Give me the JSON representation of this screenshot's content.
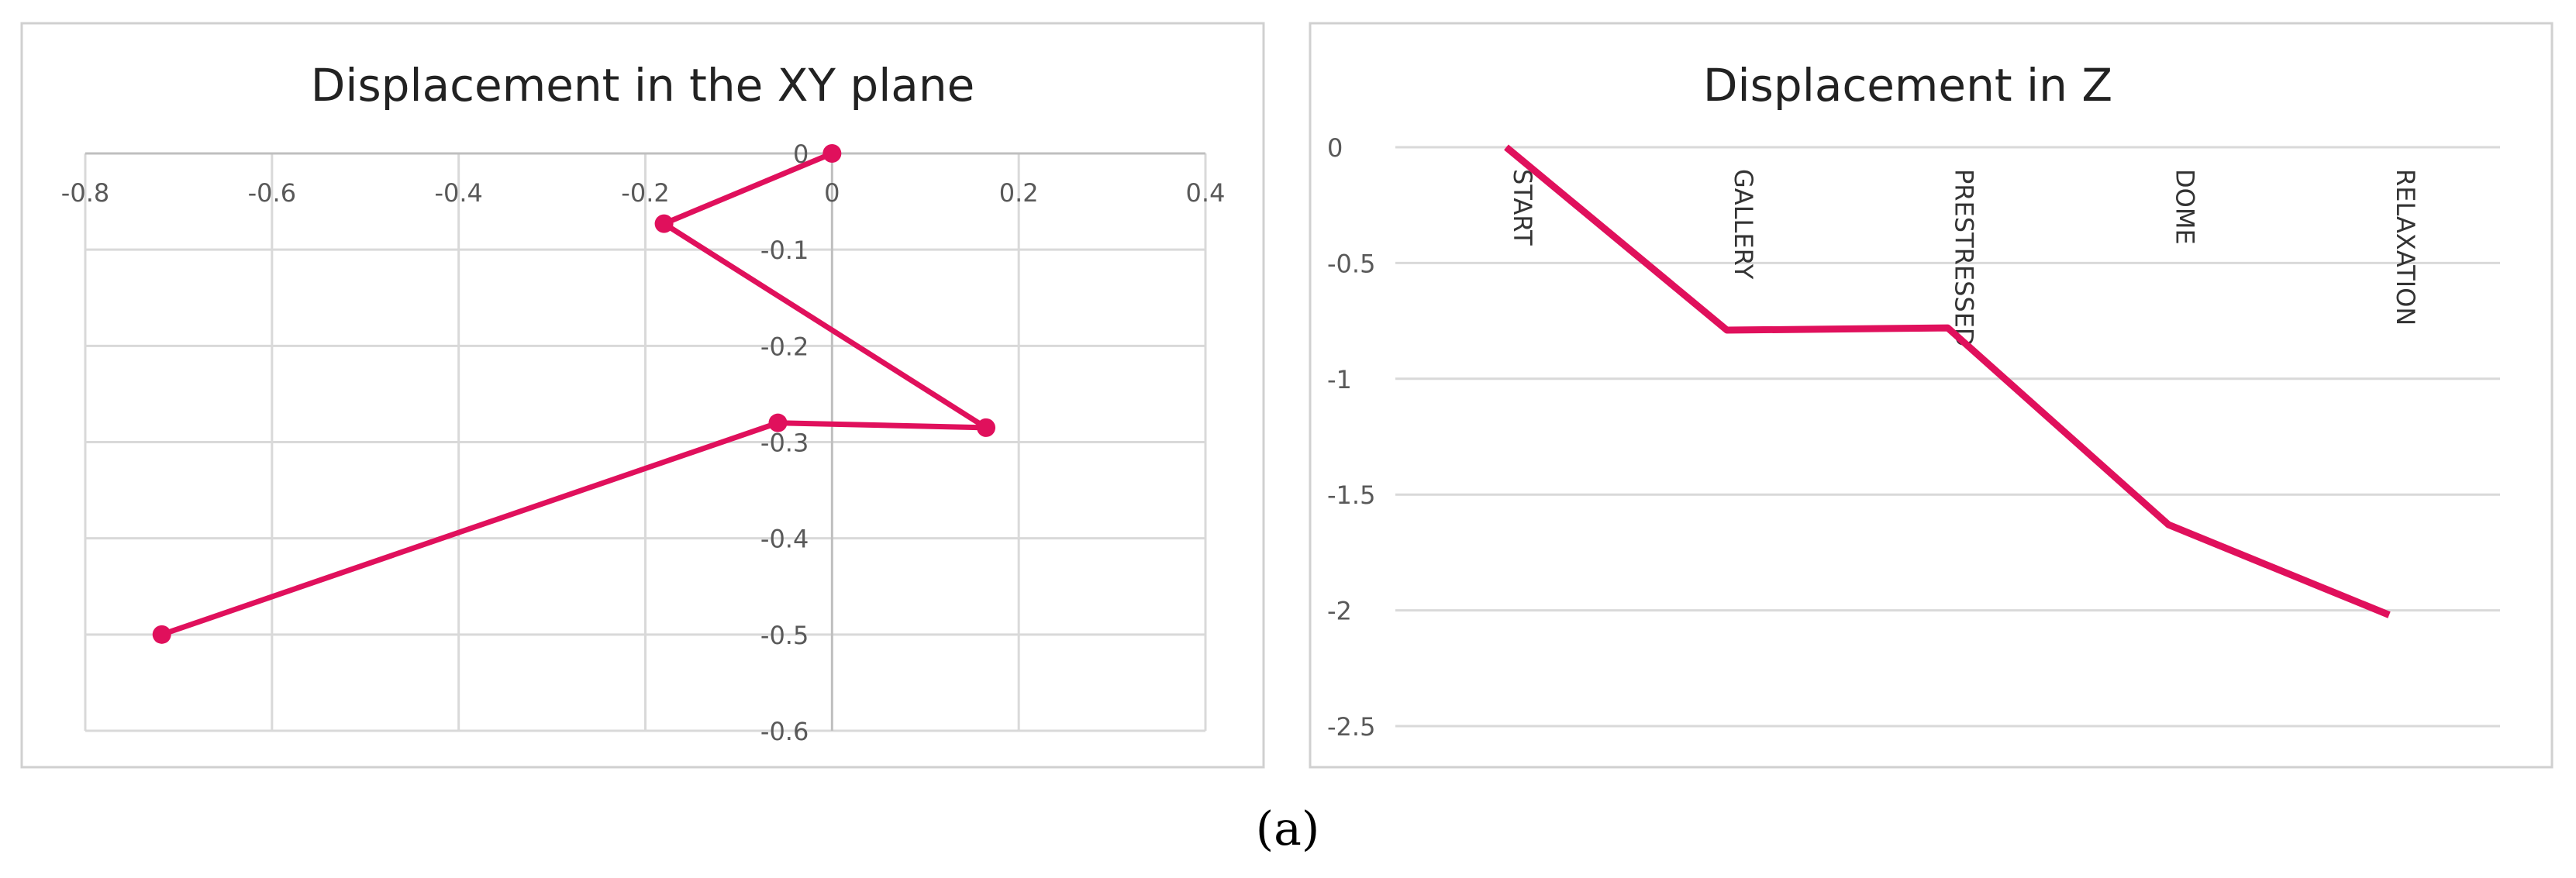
{
  "chart_data": [
    {
      "type": "scatter",
      "title": "Displacement in the XY plane",
      "xlim": [
        -0.8,
        0.4
      ],
      "ylim": [
        -0.6,
        0
      ],
      "x_ticks": [
        -0.8,
        -0.6,
        -0.4,
        -0.2,
        0,
        0.2,
        0.4
      ],
      "y_ticks": [
        0,
        -0.1,
        -0.2,
        -0.3,
        -0.4,
        -0.5,
        -0.6
      ],
      "x_tick_labels": [
        "-0.8",
        "-0.6",
        "-0.4",
        "-0.2",
        "0",
        "0.2",
        "0.4"
      ],
      "y_tick_labels": [
        "0",
        "-0.1",
        "-0.2",
        "-0.3",
        "-0.4",
        "-0.5",
        "-0.6"
      ],
      "grid": true,
      "series": [
        {
          "points": [
            {
              "x": 0,
              "y": 0
            },
            {
              "x": -0.18,
              "y": -0.073
            },
            {
              "x": 0.165,
              "y": -0.285
            },
            {
              "x": -0.058,
              "y": -0.28
            },
            {
              "x": -0.718,
              "y": -0.5
            }
          ],
          "color": "#e0105c",
          "markers": true
        }
      ]
    },
    {
      "type": "line",
      "title": "Displacement in Z",
      "categories": [
        "START",
        "GALLERY",
        "PRESTRESSED",
        "DOME",
        "RELAXATION"
      ],
      "ylim": [
        -2.5,
        0
      ],
      "y_ticks": [
        0,
        -0.5,
        -1,
        -1.5,
        -2,
        -2.5
      ],
      "y_tick_labels": [
        "0",
        "-0.5",
        "-1",
        "-1.5",
        "-2",
        "-2.5"
      ],
      "grid": true,
      "series": [
        {
          "values": [
            0,
            -0.79,
            -0.78,
            -1.63,
            -2.02
          ],
          "color": "#e0105c"
        }
      ]
    }
  ],
  "caption": "(a)"
}
